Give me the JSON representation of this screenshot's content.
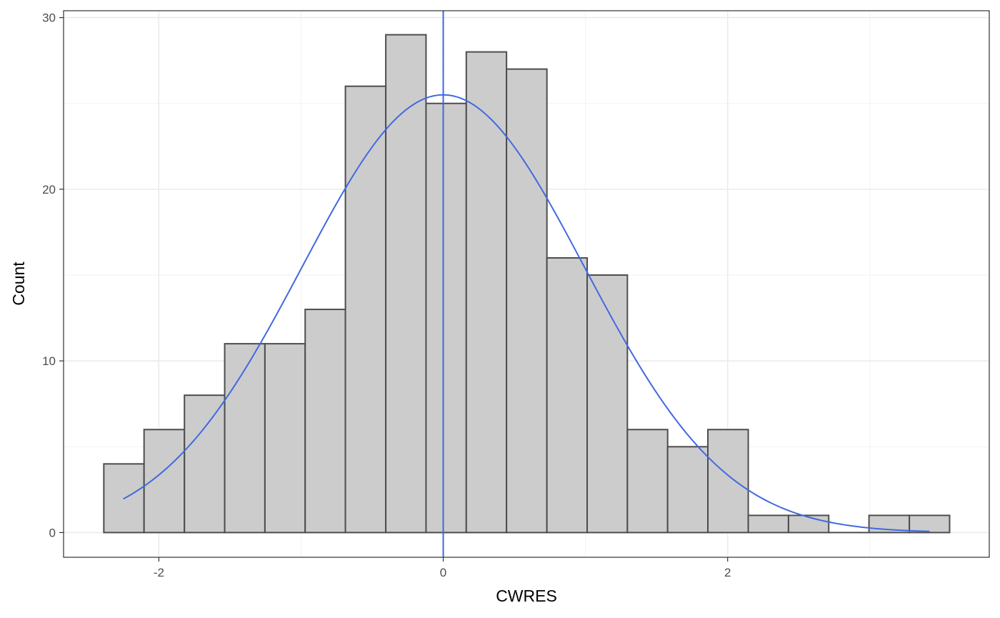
{
  "chart_data": {
    "type": "bar",
    "subtype": "histogram",
    "title": "",
    "xlabel": "CWRES",
    "ylabel": "Count",
    "xlim": [
      -2.67,
      3.84
    ],
    "ylim": [
      -1.44,
      30.4
    ],
    "x_ticks": [
      -2,
      0,
      2
    ],
    "x_tick_labels": [
      "-2",
      "0",
      "2"
    ],
    "y_ticks": [
      0,
      10,
      20,
      30
    ],
    "y_tick_labels": [
      "0",
      "10",
      "20",
      "30"
    ],
    "bin_width": 0.283,
    "bins": [
      {
        "x0": -2.387,
        "x1": -2.104,
        "count": 4
      },
      {
        "x0": -2.104,
        "x1": -1.82,
        "count": 6
      },
      {
        "x0": -1.82,
        "x1": -1.537,
        "count": 8
      },
      {
        "x0": -1.537,
        "x1": -1.254,
        "count": 11
      },
      {
        "x0": -1.254,
        "x1": -0.971,
        "count": 11
      },
      {
        "x0": -0.971,
        "x1": -0.688,
        "count": 13
      },
      {
        "x0": -0.688,
        "x1": -0.404,
        "count": 26
      },
      {
        "x0": -0.404,
        "x1": -0.121,
        "count": 29
      },
      {
        "x0": -0.121,
        "x1": 0.162,
        "count": 25
      },
      {
        "x0": 0.162,
        "x1": 0.445,
        "count": 28
      },
      {
        "x0": 0.445,
        "x1": 0.729,
        "count": 27
      },
      {
        "x0": 0.729,
        "x1": 1.012,
        "count": 16
      },
      {
        "x0": 1.012,
        "x1": 1.295,
        "count": 15
      },
      {
        "x0": 1.295,
        "x1": 1.578,
        "count": 6
      },
      {
        "x0": 1.578,
        "x1": 1.861,
        "count": 5
      },
      {
        "x0": 1.861,
        "x1": 2.145,
        "count": 6
      },
      {
        "x0": 2.145,
        "x1": 2.428,
        "count": 1
      },
      {
        "x0": 2.428,
        "x1": 2.711,
        "count": 1
      },
      {
        "x0": 2.711,
        "x1": 2.994,
        "count": 0
      },
      {
        "x0": 2.994,
        "x1": 3.278,
        "count": 1
      },
      {
        "x0": 3.278,
        "x1": 3.561,
        "count": 1
      }
    ],
    "density_curve": {
      "mean": 0.0,
      "sd": 0.993,
      "peak": 25.5,
      "x_range": [
        -2.25,
        3.42
      ]
    },
    "reference_lines": [
      {
        "x": 0,
        "style": "solid"
      },
      {
        "x": 0,
        "style": "dashed"
      }
    ],
    "grid": true,
    "legend": "none"
  },
  "colors": {
    "bar_fill": "#cccccc",
    "bar_stroke": "#4d4d4d",
    "curve": "#4169e1",
    "ref_line": "#4169e1",
    "grid_major": "#ebebeb",
    "grid_minor": "#f2f2f2",
    "panel_border": "#333333",
    "tick_text": "#4d4d4d"
  }
}
